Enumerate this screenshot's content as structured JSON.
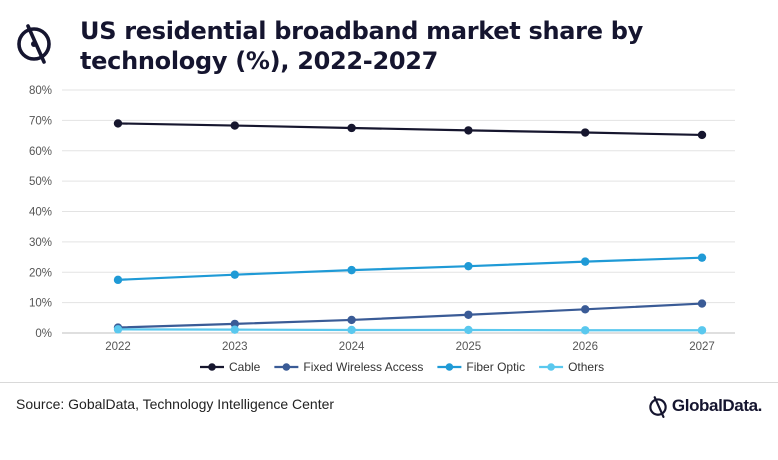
{
  "header": {
    "title": "US residential broadband market share by technology (%), 2022-2027"
  },
  "footer": {
    "source": "Source: GobalData, Technology Intelligence Center",
    "brand": "GlobalData."
  },
  "chart_data": {
    "type": "line",
    "title": "US residential broadband market share by technology (%), 2022-2027",
    "x": [
      "2022",
      "2023",
      "2024",
      "2025",
      "2026",
      "2027"
    ],
    "y_ticks": [
      "0%",
      "10%",
      "20%",
      "30%",
      "40%",
      "50%",
      "60%",
      "70%",
      "80%"
    ],
    "ylim": [
      0,
      80
    ],
    "grid": true,
    "legend_position": "bottom",
    "series": [
      {
        "name": "Cable",
        "color": "#16162e",
        "values": [
          69.0,
          68.3,
          67.5,
          66.7,
          66.0,
          65.2
        ]
      },
      {
        "name": "Fixed Wireless Access",
        "color": "#3a5b96",
        "values": [
          1.8,
          3.0,
          4.3,
          6.0,
          7.8,
          9.7
        ]
      },
      {
        "name": "Fiber Optic",
        "color": "#1f9ad6",
        "values": [
          17.5,
          19.2,
          20.7,
          22.0,
          23.5,
          24.8
        ]
      },
      {
        "name": "Others",
        "color": "#5ac8ee",
        "values": [
          1.2,
          1.1,
          1.0,
          1.0,
          0.9,
          0.9
        ]
      }
    ]
  }
}
